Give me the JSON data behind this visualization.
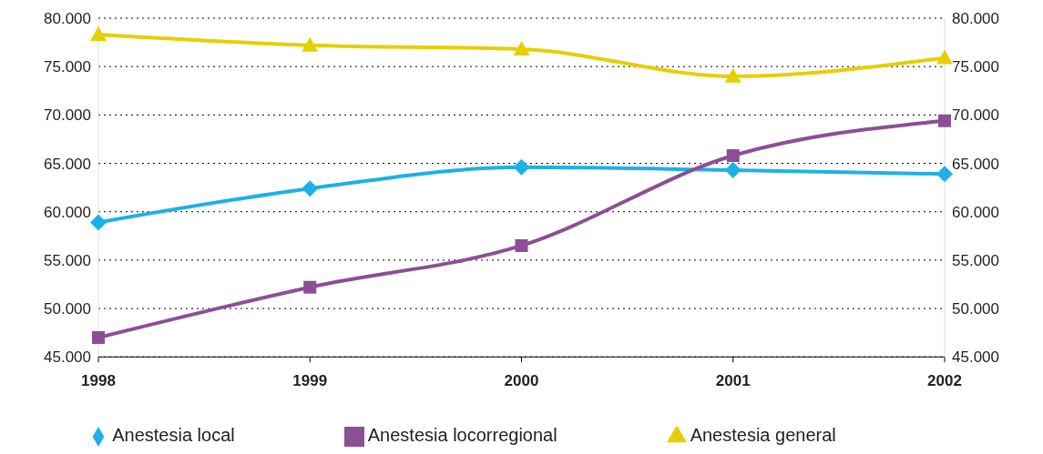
{
  "chart_data": {
    "type": "line",
    "categories": [
      "1998",
      "1999",
      "2000",
      "2001",
      "2002"
    ],
    "series": [
      {
        "name": "Anestesia local",
        "color": "#1fb0e6",
        "marker": "diamond",
        "values": [
          58900,
          62400,
          64600,
          64300,
          63900
        ]
      },
      {
        "name": "Anestesia locorregional",
        "color": "#8c4f96",
        "marker": "square",
        "values": [
          47000,
          52200,
          56500,
          65800,
          69400
        ]
      },
      {
        "name": "Anestesia general",
        "color": "#e6cf00",
        "marker": "triangle",
        "values": [
          78300,
          77200,
          76800,
          74000,
          75900
        ]
      }
    ],
    "ylim": [
      45000,
      80000
    ],
    "yticks": [
      {
        "value": 45000,
        "label": "45.000"
      },
      {
        "value": 50000,
        "label": "50.000"
      },
      {
        "value": 55000,
        "label": "55.000"
      },
      {
        "value": 60000,
        "label": "60.000"
      },
      {
        "value": 65000,
        "label": "65.000"
      },
      {
        "value": 70000,
        "label": "70.000"
      },
      {
        "value": 75000,
        "label": "75.000"
      },
      {
        "value": 80000,
        "label": "80.000"
      }
    ],
    "y2lim": [
      45000,
      80000
    ],
    "y2ticks": [
      {
        "value": 45000,
        "label": "45.000"
      },
      {
        "value": 50000,
        "label": "50.000"
      },
      {
        "value": 55000,
        "label": "55.000"
      },
      {
        "value": 60000,
        "label": "60.000"
      },
      {
        "value": 65000,
        "label": "65.000"
      },
      {
        "value": 70000,
        "label": "70.000"
      },
      {
        "value": 75000,
        "label": "75.000"
      },
      {
        "value": 80000,
        "label": "80.000"
      }
    ],
    "grid": "y",
    "legend": "bottom",
    "line_style": "solid"
  }
}
